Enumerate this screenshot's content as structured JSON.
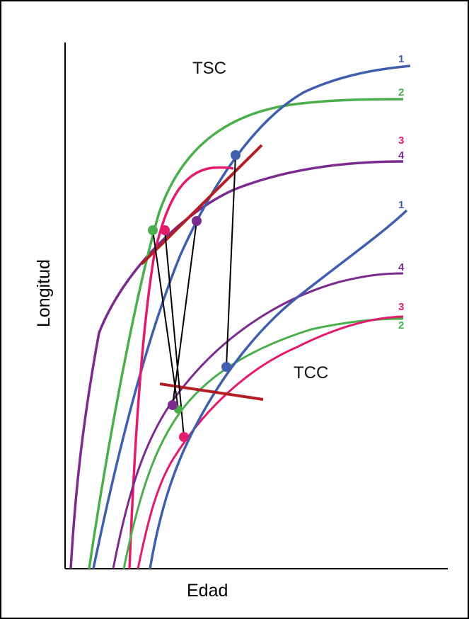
{
  "diagram": {
    "x_axis_label": "Edad",
    "y_axis_label": "Longitud",
    "regions": {
      "upper": "TSC",
      "lower": "TCC"
    },
    "colors": {
      "1": "#3f5fae",
      "2": "#49ae4b",
      "3": "#e31b6d",
      "4": "#7b2a8e",
      "trend_line": "#b21e24",
      "connector": "#000000"
    },
    "upper_curve_labels": [
      {
        "id": "1",
        "text": "1"
      },
      {
        "id": "2",
        "text": "2"
      },
      {
        "id": "3",
        "text": "3"
      },
      {
        "id": "4",
        "text": "4"
      }
    ],
    "lower_curve_labels": [
      {
        "id": "1",
        "text": "1"
      },
      {
        "id": "4",
        "text": "4"
      },
      {
        "id": "3",
        "text": "3"
      },
      {
        "id": "2",
        "text": "2"
      }
    ]
  }
}
